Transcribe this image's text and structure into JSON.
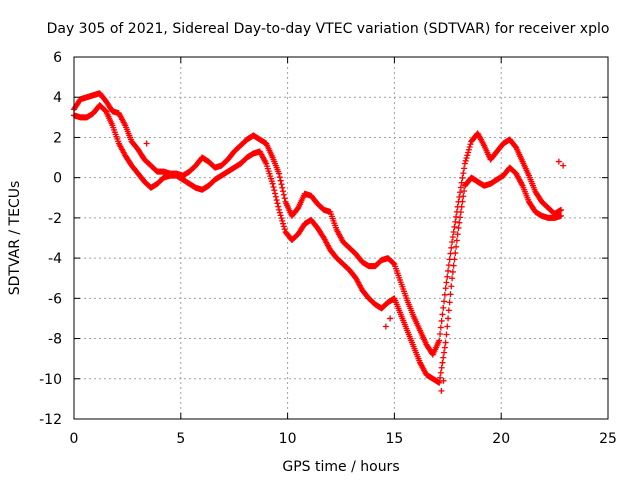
{
  "chart_data": {
    "type": "scatter",
    "title": "Day 305 of 2021, Sidereal Day-to-day VTEC variation (SDTVAR) for receiver xplo",
    "xlabel": "GPS time / hours",
    "ylabel": "SDTVAR / TECUs",
    "xlim": [
      0,
      25
    ],
    "ylim": [
      -12,
      6
    ],
    "xticks": [
      0,
      5,
      10,
      15,
      20,
      25
    ],
    "yticks": [
      -12,
      -10,
      -8,
      -6,
      -4,
      -2,
      0,
      2,
      4,
      6
    ],
    "grid": true,
    "marker": "+",
    "series": [
      {
        "name": "upper trace",
        "color": "#ff0000",
        "x": [
          0.0,
          0.3,
          0.6,
          0.9,
          1.2,
          1.5,
          1.8,
          2.1,
          2.4,
          2.7,
          3.0,
          3.3,
          3.6,
          3.9,
          4.2,
          4.5,
          4.8,
          5.1,
          5.4,
          5.7,
          6.0,
          6.3,
          6.6,
          6.9,
          7.2,
          7.5,
          7.8,
          8.1,
          8.4,
          8.7,
          9.0,
          9.3,
          9.6,
          9.9,
          10.2,
          10.5,
          10.8,
          11.1,
          11.4,
          11.7,
          12.0,
          12.3,
          12.6,
          12.9,
          13.2,
          13.5,
          13.8,
          14.1,
          14.4,
          14.7,
          15.0,
          15.3,
          15.6,
          15.9,
          16.2,
          16.5,
          16.8,
          17.1,
          17.4,
          17.7,
          18.0,
          18.3,
          18.6,
          18.9,
          19.2,
          19.5,
          19.8,
          20.1,
          20.4,
          20.7,
          21.0,
          21.3,
          21.6,
          21.9,
          22.2,
          22.5,
          22.8
        ],
        "y": [
          3.4,
          3.9,
          4.0,
          4.1,
          4.2,
          3.8,
          3.3,
          3.2,
          2.6,
          1.8,
          1.4,
          0.9,
          0.6,
          0.3,
          0.3,
          0.2,
          0.2,
          0.1,
          0.3,
          0.6,
          1.0,
          0.8,
          0.5,
          0.6,
          0.9,
          1.3,
          1.6,
          1.9,
          2.1,
          1.9,
          1.7,
          1.0,
          0.2,
          -1.2,
          -1.9,
          -1.5,
          -0.8,
          -0.9,
          -1.3,
          -1.6,
          -1.7,
          -2.6,
          -3.2,
          -3.5,
          -3.8,
          -4.2,
          -4.4,
          -4.4,
          -4.1,
          -4.0,
          -4.3,
          -5.2,
          -6.1,
          -6.9,
          -7.6,
          -8.3,
          -8.8,
          -8.1,
          -5.5,
          -3.2,
          -1.2,
          0.7,
          1.8,
          2.2,
          1.6,
          0.9,
          1.3,
          1.7,
          1.9,
          1.5,
          0.8,
          0.1,
          -0.7,
          -1.2,
          -1.5,
          -1.8,
          -1.6
        ]
      },
      {
        "name": "lower trace",
        "color": "#ff0000",
        "x": [
          0.0,
          0.3,
          0.6,
          0.9,
          1.2,
          1.5,
          1.8,
          2.1,
          2.4,
          2.7,
          3.0,
          3.3,
          3.6,
          3.9,
          4.2,
          4.5,
          4.8,
          5.1,
          5.4,
          5.7,
          6.0,
          6.3,
          6.6,
          6.9,
          7.2,
          7.5,
          7.8,
          8.1,
          8.4,
          8.7,
          9.0,
          9.3,
          9.6,
          9.9,
          10.2,
          10.5,
          10.8,
          11.1,
          11.4,
          11.7,
          12.0,
          12.3,
          12.6,
          12.9,
          13.2,
          13.5,
          13.8,
          14.1,
          14.4,
          14.7,
          15.0,
          15.3,
          15.6,
          15.9,
          16.2,
          16.5,
          16.8,
          17.1,
          17.4,
          17.7,
          18.0,
          18.3,
          18.6,
          18.9,
          19.2,
          19.5,
          19.8,
          20.1,
          20.4,
          20.7,
          21.0,
          21.3,
          21.6,
          21.9,
          22.2,
          22.5,
          22.8
        ],
        "y": [
          3.1,
          3.0,
          3.0,
          3.2,
          3.6,
          3.3,
          2.6,
          1.7,
          1.1,
          0.6,
          0.2,
          -0.2,
          -0.5,
          -0.3,
          0.0,
          0.1,
          0.1,
          -0.1,
          -0.3,
          -0.5,
          -0.6,
          -0.4,
          -0.1,
          0.1,
          0.3,
          0.5,
          0.7,
          1.0,
          1.2,
          1.3,
          0.7,
          -0.3,
          -1.6,
          -2.7,
          -3.1,
          -2.8,
          -2.3,
          -2.1,
          -2.5,
          -3.0,
          -3.6,
          -4.0,
          -4.3,
          -4.6,
          -5.0,
          -5.6,
          -6.0,
          -6.3,
          -6.5,
          -6.2,
          -6.0,
          -6.8,
          -7.6,
          -8.4,
          -9.2,
          -9.8,
          -10.0,
          -10.2,
          -8.2,
          -5.0,
          -2.5,
          -0.4,
          0.0,
          -0.2,
          -0.4,
          -0.3,
          -0.1,
          0.1,
          0.5,
          0.2,
          -0.4,
          -1.2,
          -1.7,
          -1.9,
          -2.0,
          -2.0,
          -1.9
        ]
      },
      {
        "name": "outliers",
        "color": "#ff0000",
        "x": [
          3.4,
          14.6,
          14.8,
          17.2,
          17.3,
          22.7,
          22.9
        ],
        "y": [
          1.7,
          -7.4,
          -7.0,
          -10.6,
          -10.1,
          0.8,
          0.6
        ]
      }
    ]
  }
}
